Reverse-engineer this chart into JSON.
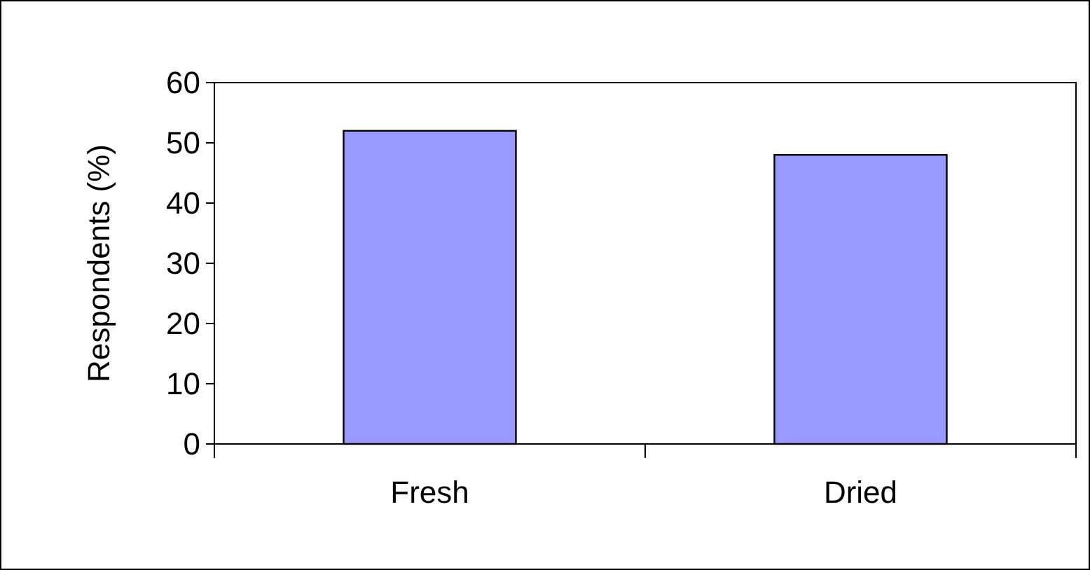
{
  "chart_data": {
    "type": "bar",
    "ylabel": "Respondents (%)",
    "categories": [
      "Fresh",
      "Dried"
    ],
    "values": [
      52,
      48
    ],
    "color": "#9999ff",
    "ylim": [
      0,
      60
    ],
    "yticks": [
      0,
      10,
      20,
      30,
      40,
      50,
      60
    ],
    "grid": false
  }
}
